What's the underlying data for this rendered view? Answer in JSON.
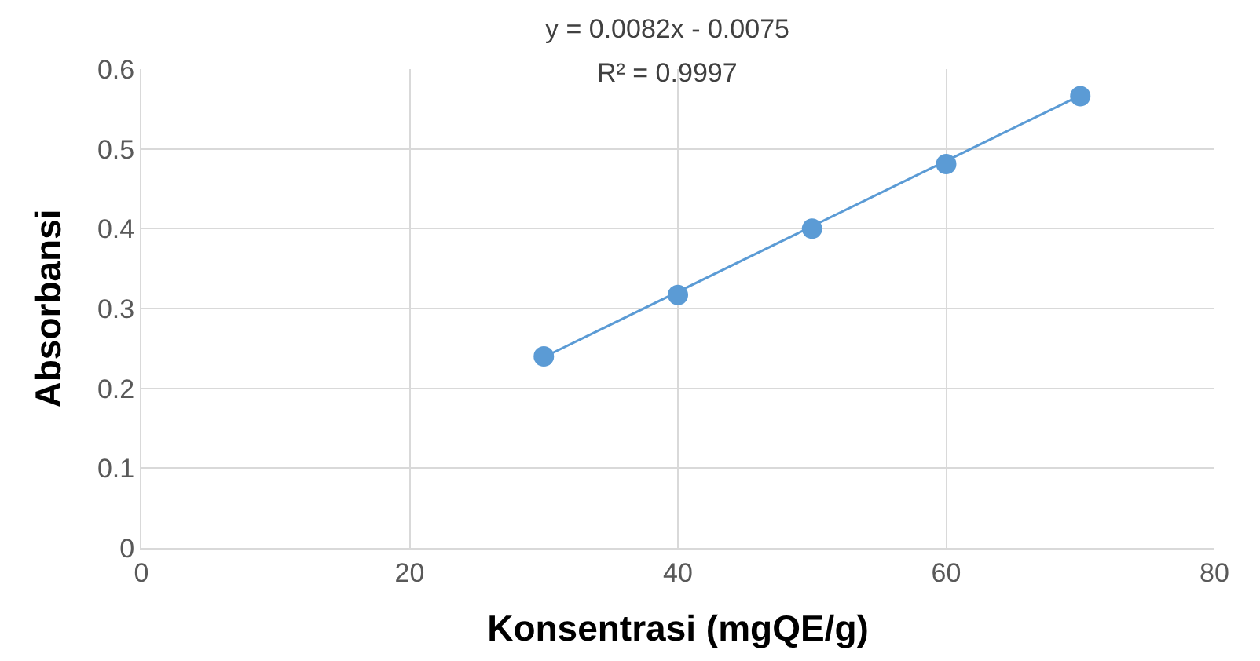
{
  "chart_data": {
    "type": "scatter",
    "xlabel": "Konsentrasi (mgQE/g)",
    "ylabel": "Absorbansi",
    "x": [
      30,
      40,
      50,
      60,
      70
    ],
    "series": [
      {
        "color": "#5b9bd5",
        "marker": "circle",
        "values": [
          0.24,
          0.317,
          0.4,
          0.481,
          0.566
        ]
      },
      {
        "type": "line",
        "marker": "none",
        "color": "#5b9bd5",
        "x": [
          30,
          70
        ],
        "values": [
          0.239,
          0.567
        ]
      }
    ],
    "annotations": [
      "y = 0.0082x - 0.0075",
      "R² = 0.9997"
    ],
    "xlim": [
      0,
      80
    ],
    "xticks": [
      0,
      20,
      40,
      60,
      80
    ],
    "ylim": [
      0,
      0.6
    ],
    "yticks": [
      0,
      0.1,
      0.2,
      0.3,
      0.4,
      0.5,
      0.6
    ],
    "grid": true
  }
}
